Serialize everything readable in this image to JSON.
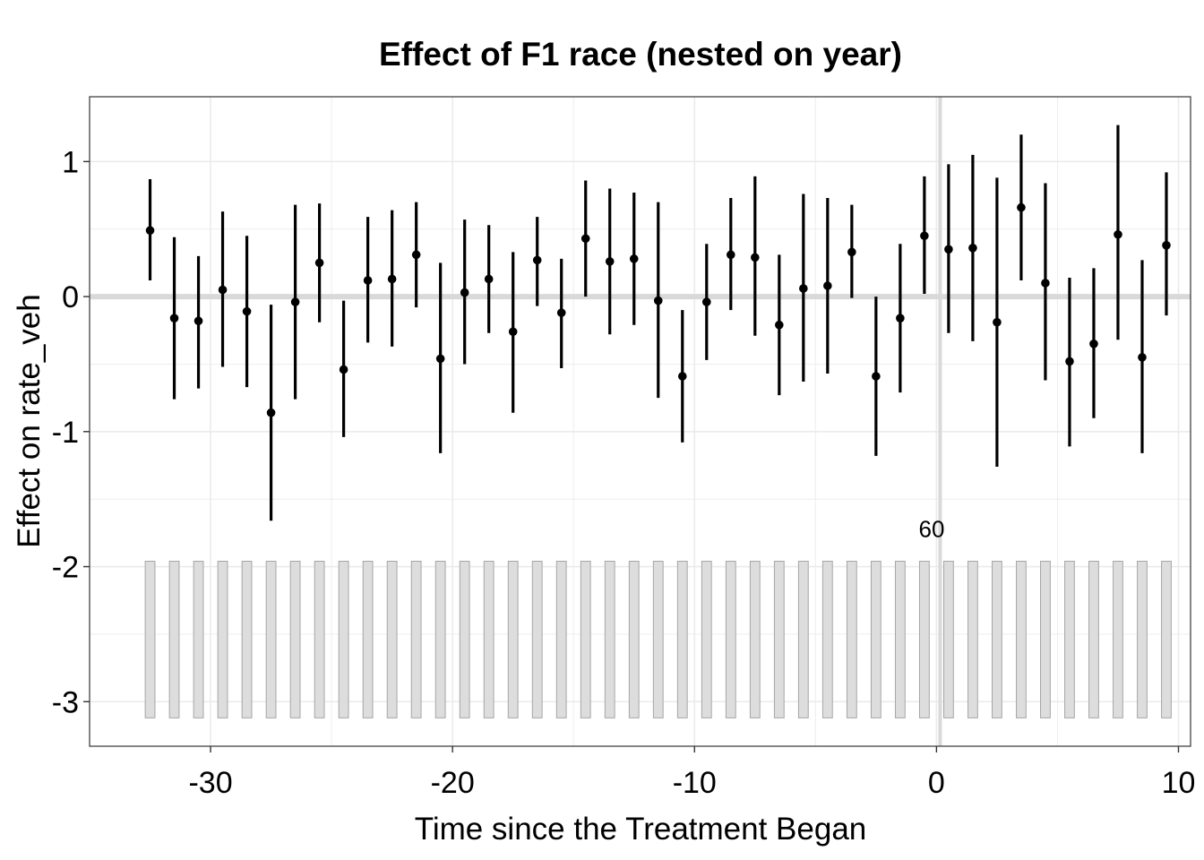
{
  "chart_data": {
    "type": "scatter",
    "title": "Effect of F1 race (nested on year)",
    "xlabel": "Time since the Treatment Began",
    "ylabel": "Effect on rate_veh",
    "xlim": [
      -35,
      10.5
    ],
    "ylim": [
      -3.33,
      1.48
    ],
    "x_ticks": [
      -30,
      -20,
      -10,
      0,
      10
    ],
    "x_tick_labels": [
      "-30",
      "-20",
      "-10",
      "0",
      "10"
    ],
    "y_ticks": [
      1,
      0,
      -1,
      -2,
      -3
    ],
    "y_tick_labels": [
      "1",
      "0",
      "-1",
      "-2",
      "-3"
    ],
    "grid": true,
    "reference_lines": {
      "horizontal_y": 0,
      "vertical_x": 0.15
    },
    "annotation": {
      "text": "60",
      "x": -0.2,
      "y": -1.72
    },
    "series": [
      {
        "x": [
          -32.5,
          -31.5,
          -30.5,
          -29.5,
          -28.5,
          -27.5,
          -26.5,
          -25.5,
          -24.5,
          -23.5,
          -22.5,
          -21.5,
          -20.5,
          -19.5,
          -18.5,
          -17.5,
          -16.5,
          -15.5,
          -14.5,
          -13.5,
          -12.5,
          -11.5,
          -10.5,
          -9.5,
          -8.5,
          -7.5,
          -6.5,
          -5.5,
          -4.5,
          -3.5,
          -2.5,
          -1.5,
          -0.5,
          0.5,
          1.5,
          2.5,
          3.5,
          4.5,
          5.5,
          6.5,
          7.5,
          8.5,
          9.5
        ],
        "estimate": [
          0.49,
          -0.16,
          -0.18,
          0.05,
          -0.11,
          -0.86,
          -0.04,
          0.25,
          -0.54,
          0.12,
          0.13,
          0.31,
          -0.46,
          0.03,
          0.13,
          -0.26,
          0.27,
          -0.12,
          0.43,
          0.26,
          0.28,
          -0.03,
          -0.59,
          -0.04,
          0.31,
          0.29,
          -0.21,
          0.06,
          0.08,
          0.33,
          -0.59,
          -0.16,
          0.45,
          0.35,
          0.36,
          -0.19,
          0.66,
          0.1,
          -0.48,
          -0.35,
          0.46,
          -0.45,
          0.38
        ],
        "lower": [
          0.12,
          -0.76,
          -0.68,
          -0.52,
          -0.67,
          -1.66,
          -0.76,
          -0.19,
          -1.04,
          -0.34,
          -0.37,
          -0.08,
          -1.16,
          -0.5,
          -0.27,
          -0.86,
          -0.07,
          -0.53,
          0.0,
          -0.28,
          -0.21,
          -0.75,
          -1.08,
          -0.47,
          -0.1,
          -0.29,
          -0.73,
          -0.63,
          -0.57,
          -0.01,
          -1.18,
          -0.71,
          0.02,
          -0.27,
          -0.33,
          -1.26,
          0.12,
          -0.62,
          -1.11,
          -0.9,
          -0.32,
          -1.16,
          -0.14
        ],
        "upper": [
          0.87,
          0.44,
          0.3,
          0.63,
          0.45,
          -0.06,
          0.68,
          0.69,
          -0.03,
          0.59,
          0.64,
          0.7,
          0.25,
          0.57,
          0.53,
          0.33,
          0.59,
          0.28,
          0.86,
          0.8,
          0.77,
          0.7,
          -0.1,
          0.39,
          0.73,
          0.89,
          0.31,
          0.76,
          0.73,
          0.68,
          0.0,
          0.39,
          0.89,
          0.98,
          1.05,
          0.88,
          1.2,
          0.84,
          0.14,
          0.21,
          1.27,
          0.27,
          0.92
        ]
      }
    ],
    "count_bars": {
      "x": [
        -32.5,
        -31.5,
        -30.5,
        -29.5,
        -28.5,
        -27.5,
        -26.5,
        -25.5,
        -24.5,
        -23.5,
        -22.5,
        -21.5,
        -20.5,
        -19.5,
        -18.5,
        -17.5,
        -16.5,
        -15.5,
        -14.5,
        -13.5,
        -12.5,
        -11.5,
        -10.5,
        -9.5,
        -8.5,
        -7.5,
        -6.5,
        -5.5,
        -4.5,
        -3.5,
        -2.5,
        -1.5,
        -0.5,
        0.5,
        1.5,
        2.5,
        3.5,
        4.5,
        5.5,
        6.5,
        7.5,
        8.5,
        9.5
      ],
      "value": 60,
      "bottom": -3.12,
      "top": -1.96
    },
    "colors": {
      "points": "#000000",
      "bars_fill": "#dddddd",
      "bars_stroke": "#a6a6a6",
      "reference_lines": "#d9d9d9",
      "grid": "#ebebeb"
    }
  }
}
